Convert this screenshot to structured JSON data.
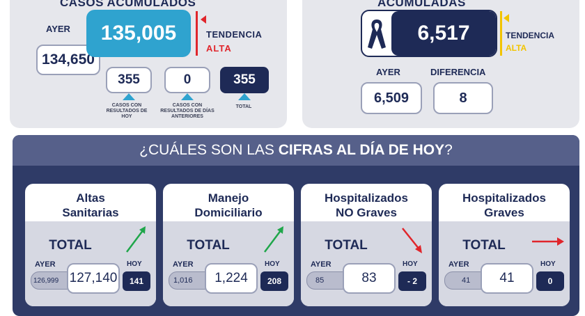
{
  "cases": {
    "title": "CASOS ACUMULADOS",
    "ayer_label": "AYER",
    "ayer_value": "134,650",
    "total": "135,005",
    "tendencia_label": "TENDENCIA",
    "tendencia_value": "ALTA",
    "boxes": [
      {
        "value": "355",
        "caption": "CASOS CON RESULTADOS DE HOY"
      },
      {
        "value": "0",
        "caption": "CASOS CON RESULTADOS DE DÍAS ANTERIORES"
      },
      {
        "value": "355",
        "caption": "TOTAL"
      }
    ]
  },
  "deaths": {
    "title": "ACUMULADAS",
    "total": "6,517",
    "tendencia_label": "TENDENCIA",
    "tendencia_value": "ALTA",
    "ayer_label": "AYER",
    "ayer_value": "6,509",
    "diferencia_label": "DIFERENCIA",
    "diferencia_value": "8"
  },
  "banner": {
    "prefix": "¿CUÁLES SON LAS ",
    "bold": "CIFRAS AL DÍA DE HOY",
    "suffix": "?"
  },
  "cards": [
    {
      "title_l1": "Altas",
      "title_l2": "Sanitarias",
      "total_label": "TOTAL",
      "ayer_label": "AYER",
      "ayer": "126,999",
      "value": "127,140",
      "hoy_label": "HOY",
      "hoy": "141",
      "trend": "up"
    },
    {
      "title_l1": "Manejo",
      "title_l2": "Domiciliario",
      "total_label": "TOTAL",
      "ayer_label": "AYER",
      "ayer": "1,016",
      "value": "1,224",
      "hoy_label": "HOY",
      "hoy": "208",
      "trend": "up"
    },
    {
      "title_l1": "Hospitalizados",
      "title_l2": "NO Graves",
      "total_label": "TOTAL",
      "ayer_label": "AYER",
      "ayer": "85",
      "value": "83",
      "hoy_label": "HOY",
      "hoy": "- 2",
      "trend": "down"
    },
    {
      "title_l1": "Hospitalizados",
      "title_l2": "Graves",
      "total_label": "TOTAL",
      "ayer_label": "AYER",
      "ayer": "41",
      "value": "41",
      "hoy_label": "HOY",
      "hoy": "0",
      "trend": "flat"
    }
  ],
  "colors": {
    "navy": "#1e2a56",
    "cyan": "#2fa3cf",
    "red": "#e0252b",
    "green": "#1fa64a",
    "yellow": "#f2c400",
    "banner": "#2f3b67"
  }
}
